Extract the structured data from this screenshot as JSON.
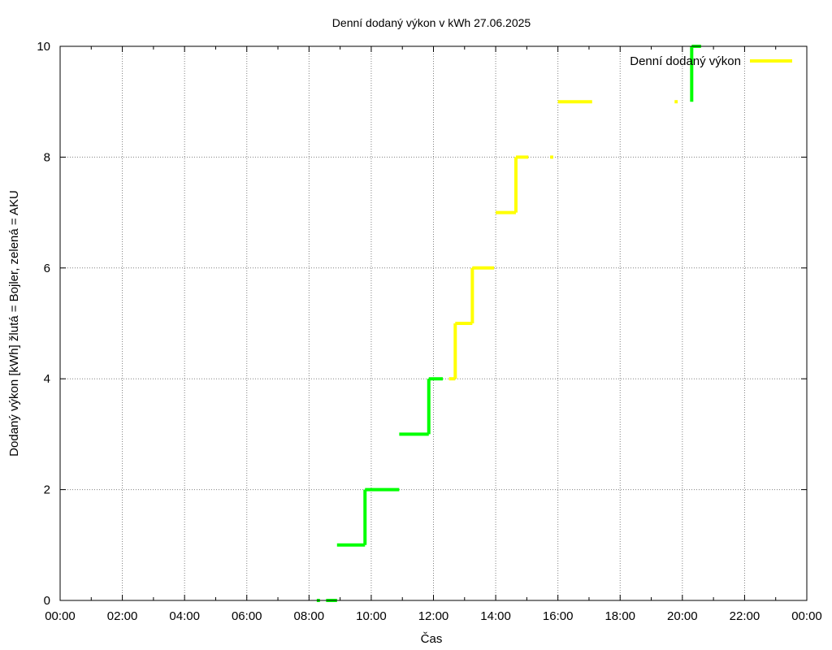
{
  "chart_data": {
    "type": "line",
    "title": "Denní dodaný výkon v kWh 27.06.2025",
    "xlabel": "Čas",
    "ylabel": "Dodaný výkon [kWh]  žlutá = Bojler, zelená = AKU",
    "xlim": [
      0,
      24
    ],
    "ylim": [
      0,
      10
    ],
    "xticks": [
      "00:00",
      "02:00",
      "04:00",
      "06:00",
      "08:00",
      "10:00",
      "12:00",
      "14:00",
      "16:00",
      "18:00",
      "20:00",
      "22:00",
      "00:00"
    ],
    "yticks": [
      "0",
      "2",
      "4",
      "6",
      "8",
      "10"
    ],
    "grid": true,
    "legend": {
      "position": "top-right",
      "label": "Denní dodaný výkon",
      "color": "#ffff00"
    },
    "colors": {
      "bojler": "#ffff00",
      "aku": "#00ff00"
    },
    "series": [
      {
        "color": "#00ff00",
        "segments": [
          [
            [
              8.25,
              0
            ],
            [
              8.35,
              0
            ]
          ],
          [
            [
              8.55,
              0
            ],
            [
              8.9,
              0
            ]
          ],
          [
            [
              8.9,
              1
            ],
            [
              9.8,
              1
            ]
          ],
          [
            [
              9.8,
              1
            ],
            [
              9.8,
              2
            ]
          ],
          [
            [
              9.8,
              2
            ],
            [
              10.9,
              2
            ]
          ],
          [
            [
              10.9,
              3
            ],
            [
              11.85,
              3
            ]
          ],
          [
            [
              11.85,
              3
            ],
            [
              11.85,
              4
            ]
          ],
          [
            [
              11.85,
              4
            ],
            [
              12.3,
              4
            ]
          ],
          [
            [
              20.3,
              9
            ],
            [
              20.3,
              10
            ]
          ],
          [
            [
              20.3,
              10
            ],
            [
              20.6,
              10
            ]
          ]
        ]
      },
      {
        "color": "#ffff00",
        "segments": [
          [
            [
              12.5,
              4
            ],
            [
              12.7,
              4
            ]
          ],
          [
            [
              12.7,
              4
            ],
            [
              12.7,
              5
            ]
          ],
          [
            [
              12.7,
              5
            ],
            [
              13.25,
              5
            ]
          ],
          [
            [
              13.25,
              5
            ],
            [
              13.25,
              6
            ]
          ],
          [
            [
              13.25,
              6
            ],
            [
              13.95,
              6
            ]
          ],
          [
            [
              14.0,
              7
            ],
            [
              14.65,
              7
            ]
          ],
          [
            [
              14.65,
              7
            ],
            [
              14.65,
              8
            ]
          ],
          [
            [
              14.65,
              8
            ],
            [
              15.05,
              8
            ]
          ],
          [
            [
              15.75,
              8
            ],
            [
              15.85,
              8
            ]
          ],
          [
            [
              16.0,
              9
            ],
            [
              17.1,
              9
            ]
          ],
          [
            [
              19.75,
              9
            ],
            [
              19.85,
              9
            ]
          ]
        ]
      }
    ]
  }
}
